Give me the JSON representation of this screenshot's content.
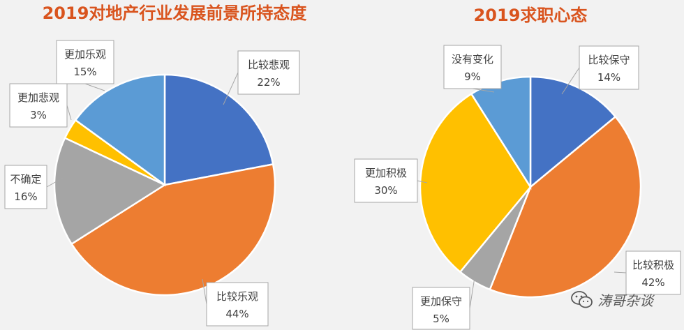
{
  "chart_data": [
    {
      "type": "pie",
      "title": "2019对地产行业发展前景所持态度",
      "slices": [
        {
          "label": "比较悲观",
          "value": 22,
          "pct": "22%",
          "color": "#4472c4"
        },
        {
          "label": "比较乐观",
          "value": 44,
          "pct": "44%",
          "color": "#ed7d31"
        },
        {
          "label": "不确定",
          "value": 16,
          "pct": "16%",
          "color": "#a5a5a5"
        },
        {
          "label": "更加悲观",
          "value": 3,
          "pct": "3%",
          "color": "#ffc000"
        },
        {
          "label": "更加乐观",
          "value": 15,
          "pct": "15%",
          "color": "#5b9bd5"
        }
      ]
    },
    {
      "type": "pie",
      "title": "2019求职心态",
      "slices": [
        {
          "label": "比较保守",
          "value": 14,
          "pct": "14%",
          "color": "#4472c4"
        },
        {
          "label": "比较积极",
          "value": 42,
          "pct": "42%",
          "color": "#ed7d31"
        },
        {
          "label": "更加保守",
          "value": 5,
          "pct": "5%",
          "color": "#a5a5a5"
        },
        {
          "label": "更加积极",
          "value": 30,
          "pct": "30%",
          "color": "#ffc000"
        },
        {
          "label": "没有变化",
          "value": 9,
          "pct": "9%",
          "color": "#5b9bd5"
        }
      ]
    }
  ],
  "watermark": {
    "text": "涛哥杂谈",
    "icon": "wechat-icon"
  }
}
